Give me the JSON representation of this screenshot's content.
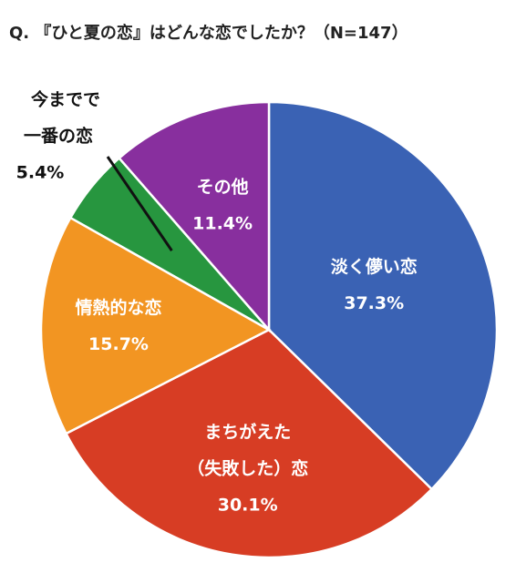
{
  "chart_data": {
    "type": "pie",
    "title": "Q. 『ひと夏の恋』はどんな恋でしたか？（N=147）",
    "start_angle_deg": 0,
    "direction": "clockwise",
    "slices": [
      {
        "label_lines": [
          "淡く儚い恋"
        ],
        "value": 37.3,
        "value_label": "37.3%",
        "color": "#3A62B4",
        "label_position": "inside"
      },
      {
        "label_lines": [
          "まちがえた",
          "（失敗した）恋"
        ],
        "value": 30.1,
        "value_label": "30.1%",
        "color": "#D73D24",
        "label_position": "inside"
      },
      {
        "label_lines": [
          "情熱的な恋"
        ],
        "value": 15.7,
        "value_label": "15.7%",
        "color": "#F29522",
        "label_position": "inside"
      },
      {
        "label_lines": [
          "今までで",
          "一番の恋"
        ],
        "value": 5.4,
        "value_label": "5.4%",
        "color": "#27963F",
        "label_position": "outside"
      },
      {
        "label_lines": [
          "その他"
        ],
        "value": 11.4,
        "value_label": "11.4%",
        "color": "#882F9E",
        "label_position": "inside"
      }
    ]
  }
}
